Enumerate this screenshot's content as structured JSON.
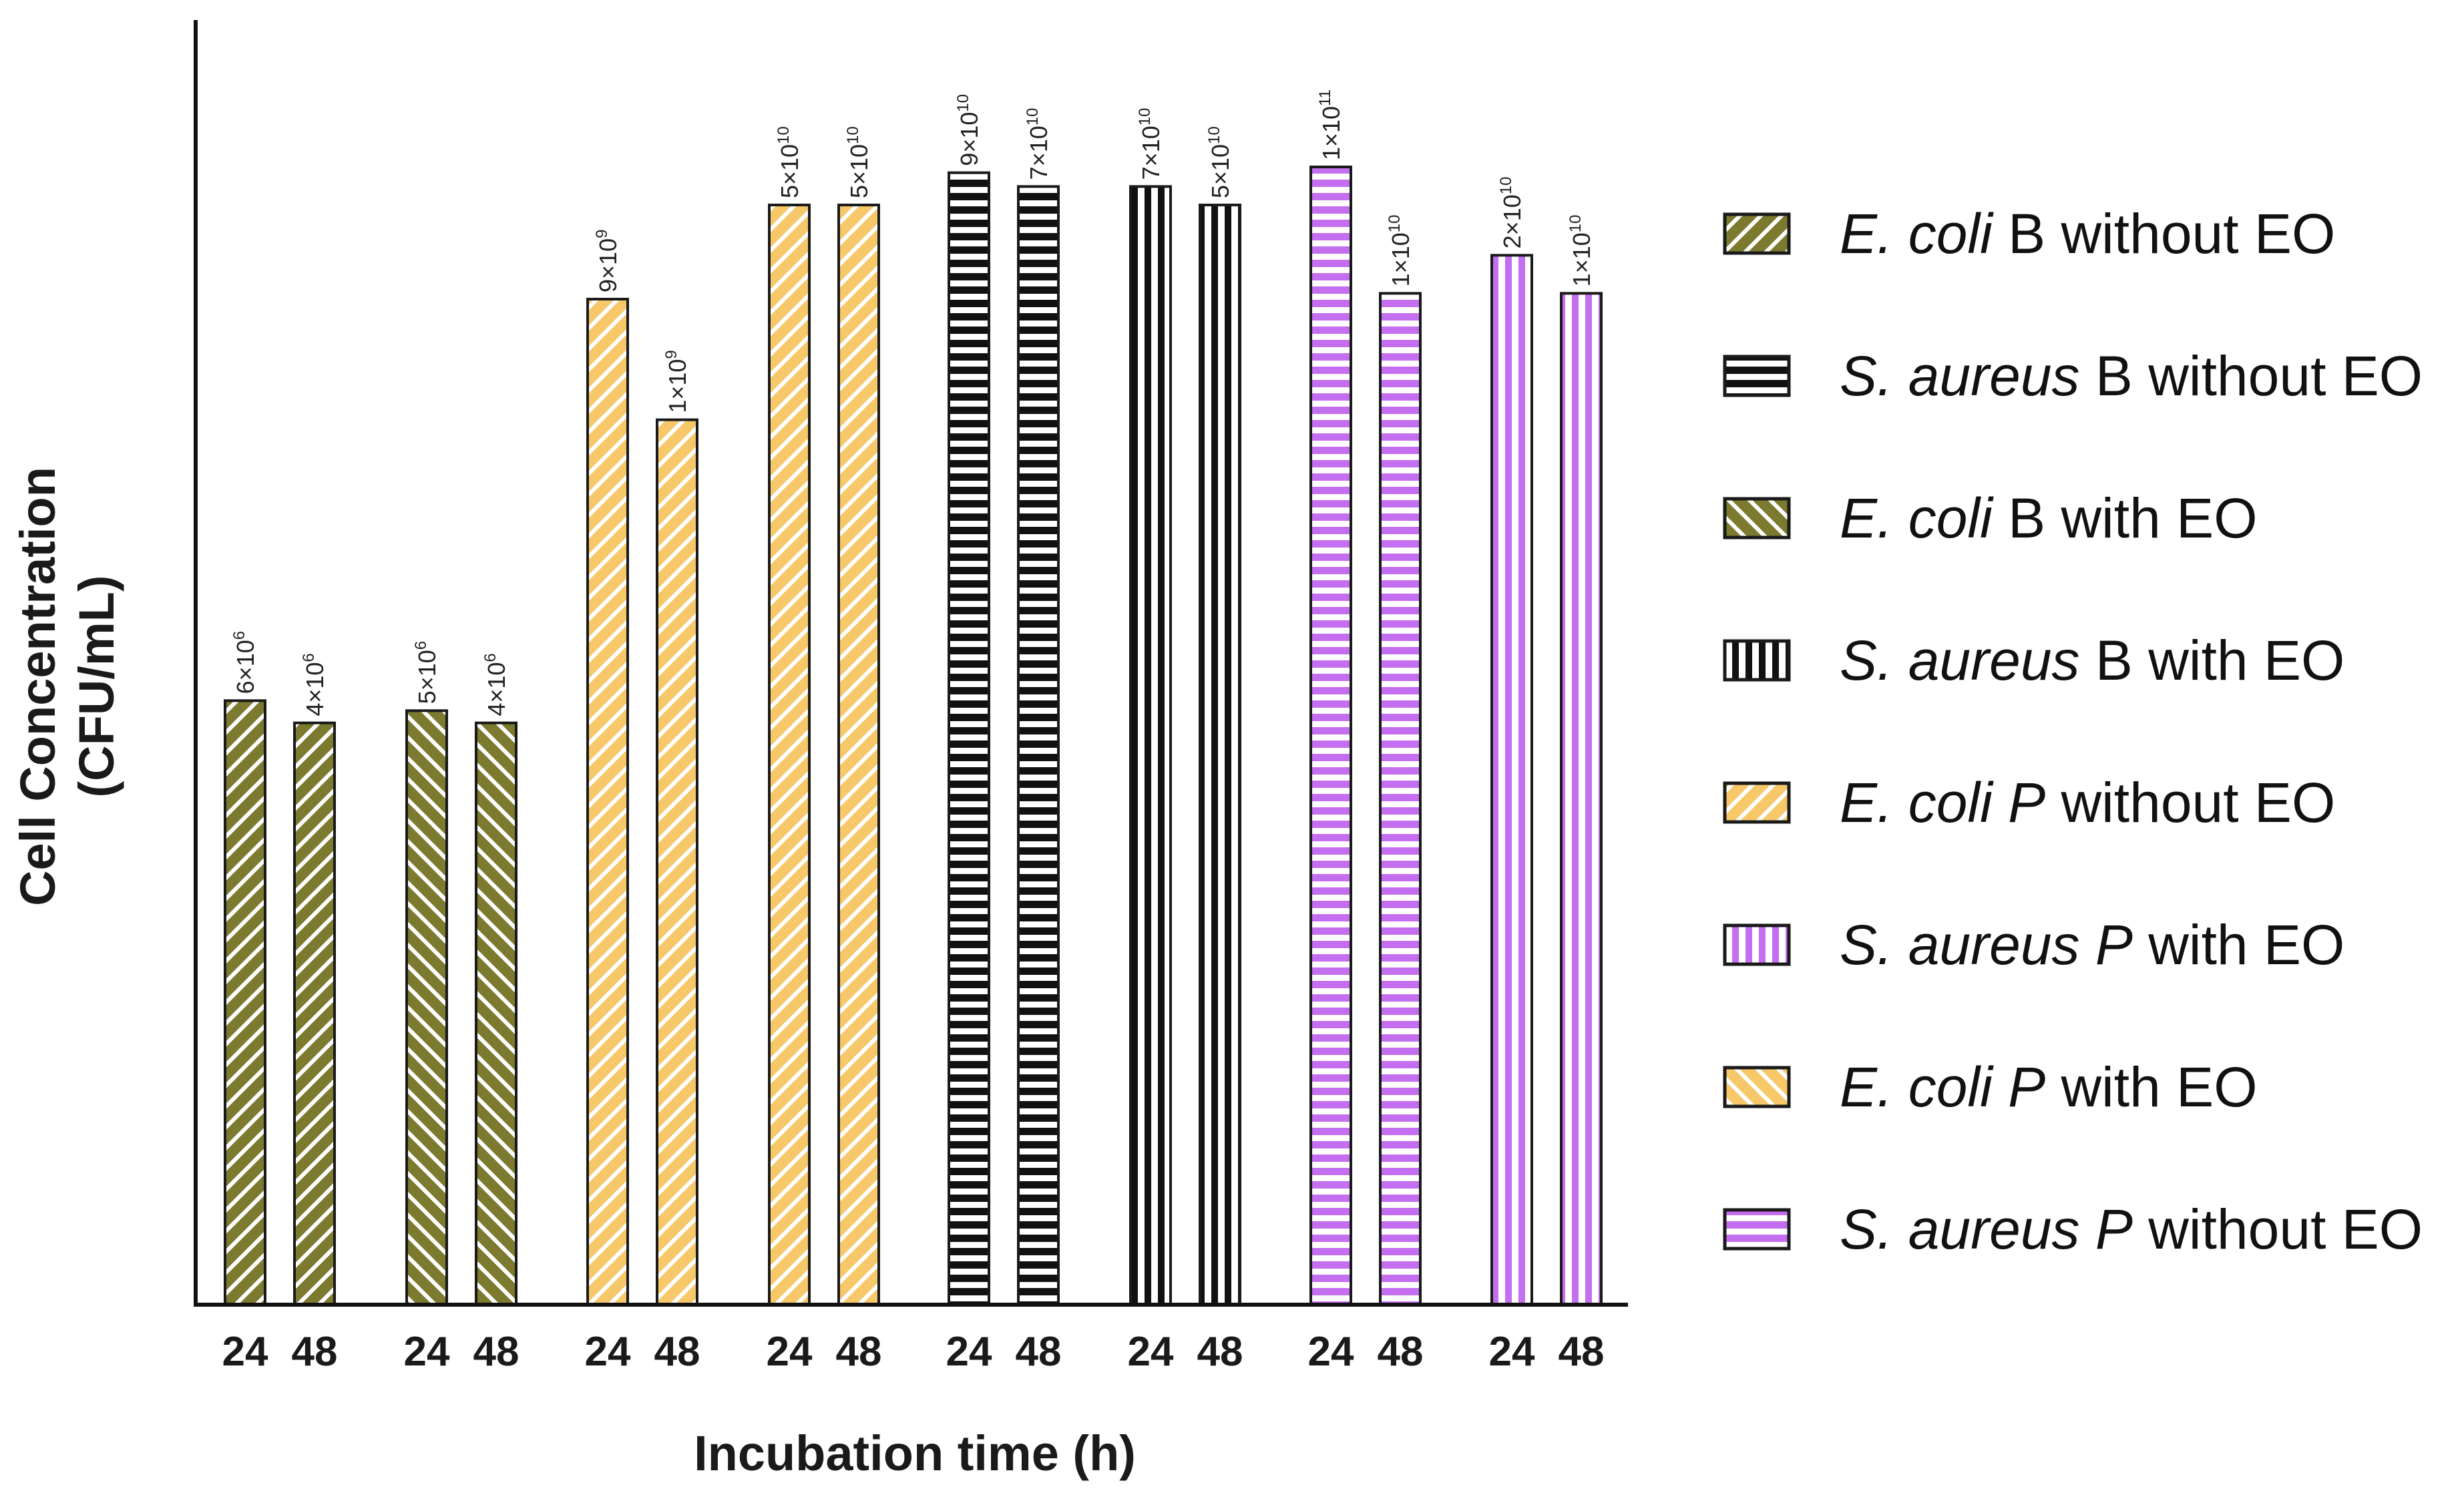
{
  "chart_data": {
    "type": "bar",
    "title": "",
    "xlabel": "Incubation time (h)",
    "ylabel_line1": "Cell Concentration",
    "ylabel_line2": "(CFU/mL)",
    "yscale": "log",
    "ylim": [
      100,
      100000000000
    ],
    "categories": [
      "24",
      "48",
      "24",
      "48",
      "24",
      "48",
      "24",
      "48",
      "24",
      "48",
      "24",
      "48",
      "24",
      "48",
      "24",
      "48"
    ],
    "groups": [
      {
        "style": "ecoliB_no",
        "values": [
          6000000.0,
          4000000.0
        ],
        "mant": [
          "6",
          "4"
        ],
        "exp": [
          "6",
          "6"
        ]
      },
      {
        "style": "ecoliB_eo",
        "values": [
          5000000.0,
          4000000.0
        ],
        "mant": [
          "5",
          "4"
        ],
        "exp": [
          "6",
          "6"
        ]
      },
      {
        "style": "ecoliP_no",
        "values": [
          9000000000.0,
          1000000000.0
        ],
        "mant": [
          "9",
          "1"
        ],
        "exp": [
          "9",
          "9"
        ]
      },
      {
        "style": "ecoliP_no",
        "values": [
          50000000000.0,
          50000000000.0
        ],
        "mant": [
          "5",
          "5"
        ],
        "exp": [
          "10",
          "10"
        ]
      },
      {
        "style": "saureusB_no",
        "values": [
          90000000000.0,
          70000000000.0
        ],
        "mant": [
          "9",
          "7"
        ],
        "exp": [
          "10",
          "10"
        ]
      },
      {
        "style": "saureusB_eo",
        "values": [
          70000000000.0,
          50000000000.0
        ],
        "mant": [
          "7",
          "5"
        ],
        "exp": [
          "10",
          "10"
        ]
      },
      {
        "style": "saureusP_no",
        "values": [
          100000000000.0,
          10000000000.0
        ],
        "mant": [
          "1",
          "1"
        ],
        "exp": [
          "11",
          "10"
        ]
      },
      {
        "style": "saureusP_eo",
        "values": [
          20000000000.0,
          10000000000.0
        ],
        "mant": [
          "2",
          "1"
        ],
        "exp": [
          "10",
          "10"
        ]
      }
    ],
    "legend": [
      {
        "style": "ecoliB_no",
        "italic": "E. coli",
        "rest": " B without EO"
      },
      {
        "style": "saureusB_no",
        "italic": "S. aureus",
        "rest": " B without EO"
      },
      {
        "style": "ecoliB_eo",
        "italic": "E. coli",
        "rest": " B with EO"
      },
      {
        "style": "saureusB_eo",
        "italic": "S. aureus",
        "rest": " B with EO"
      },
      {
        "style": "ecoliP_no",
        "italic": "E. coli P",
        "rest": " without EO"
      },
      {
        "style": "saureusP_eo",
        "italic": "S. aureus P",
        "rest": " with EO"
      },
      {
        "style": "ecoliP_eo",
        "italic": "E. coli P",
        "rest": " with EO"
      },
      {
        "style": "saureusP_no",
        "italic": "S. aureus P",
        "rest": " without EO"
      }
    ],
    "legend_position": "right",
    "colors": {
      "olive": "#7b7a2e",
      "orange": "#f6c86a",
      "black": "#111111",
      "violet": "#c46ef0",
      "outline": "#1a1a1a"
    }
  }
}
